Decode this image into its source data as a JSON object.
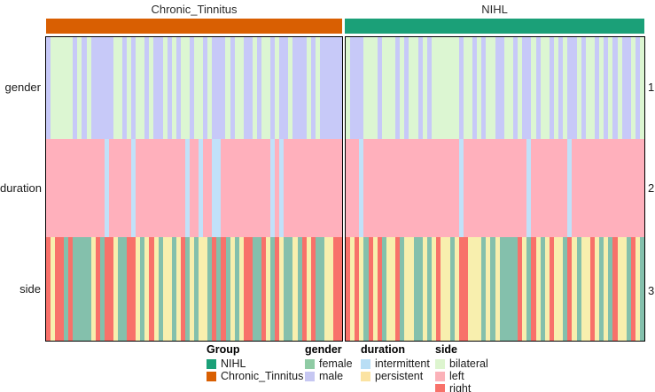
{
  "header": {
    "left_title": "Chronic_Tinnitus",
    "right_title": "NIHL"
  },
  "colors": {
    "group_bar": {
      "Chronic_Tinnitus": "#d95f02",
      "NIHL": "#1ba078"
    },
    "tracks": {
      "gender": {
        "female": "#dcf6d2",
        "male": "#c7c9f8"
      },
      "duration": {
        "intermittent": "#c1e1f9",
        "persistent": "#ffb0bc"
      },
      "side": {
        "bilateral": "#84c0ac",
        "left": "#f8efae",
        "right": "#f8716a"
      }
    }
  },
  "chart_data": {
    "type": "heatmap",
    "subtype": "categorical-annotation-heatmap",
    "description": "Columns are individual subjects split into two diagnosis groups; three categorical annotation rows (gender, duration, side) shown as colored stripes.",
    "column_groups": [
      {
        "name": "Chronic_Tinnitus",
        "n": 66
      },
      {
        "name": "NIHL",
        "n": 66
      }
    ],
    "rows": [
      {
        "key": "gender",
        "label": "gender",
        "number": "1"
      },
      {
        "key": "duration",
        "label": "duration",
        "number": "2"
      },
      {
        "key": "side",
        "label": "side",
        "number": "3"
      }
    ],
    "codes": {
      "gender": {
        "F": "female",
        "M": "male"
      },
      "duration": {
        "I": "intermittent",
        "P": "persistent"
      },
      "side": {
        "B": "bilateral",
        "L": "left",
        "R": "right"
      }
    },
    "panels": [
      {
        "group": "Chronic_Tinnitus",
        "tracks": {
          "gender": "M1 F5 M1 F1 M1 F1 M5 F2 M1 F1 M1 F2 M1 F1 M2 F1 M1 F1 M1 F2 M1 F2 M1 F1 M3 F1 M1 F2 M2 F1 M1 F2 M1 F1 M2 F1 M3 F1 M1 F1 M5",
          "duration": "P13 I1 P5 I1 P11 I1 P2 I1 P2 I2 P11 I1 P1 I1 P13",
          "side": "R1 L1 R2 B1 R1 B4 L1 R1 B1 R2 L1 B2 R2 L1 B1 L1 R1 L1 B1 L2 B1 L1 R1 B1 L1 B1 L2 B1 R1 B1 R1 B1 L1 B1 L1 R2 B2 R1 L1 B1 R1 L1 B2 L1 B1 R1 L1 R1 B2 L2 R2"
        }
      },
      {
        "group": "NIHL",
        "tracks": {
          "gender": "F1 M3 F3 M1 F3 M1 F1 M1 F2 M1 F1 M1 F6 M1 F2 M1 F1 M1 F2 M2 F2 M1 F1 M2 F1 M1 F2 M1 F1 M1 F1 M2 F1 M1 F2 M1 F1 M1 F1 M1 F1 M2 F1 M1 F1",
          "duration": "P3 I1 P21 I1 P14 I1 P8 I1 P16",
          "side": "R1 L1 R1 L1 B1 R1 L1 R1 B1 L2 R1 B1 L2 B2 L1 B1 L1 R1 L2 B1 L1 R2 L3 B1 L1 B1 L1 B4 R1 L1 B1 R1 L1 B1 L1 R1 L2 B1 R1 L1 B1 L2 R1 L1 B1 L1 B1 R1 L2 B1 R1 L1 B1"
        }
      }
    ]
  },
  "legend": {
    "groups": [
      {
        "title": "Group",
        "items": [
          {
            "label": "NIHL",
            "color": "#1ba078"
          },
          {
            "label": "Chronic_Tinnitus",
            "color": "#d95f02"
          }
        ]
      },
      {
        "title": "gender",
        "items": [
          {
            "label": "female",
            "color": "#8fcba4"
          },
          {
            "label": "male",
            "color": "#c6c7f2"
          }
        ]
      },
      {
        "title": "duration",
        "items": [
          {
            "label": "intermittent",
            "color": "#b9def5"
          },
          {
            "label": "persistent",
            "color": "#fbe3a2"
          }
        ]
      },
      {
        "title": "side",
        "items": [
          {
            "label": "bilateral",
            "color": "#ddf5cf"
          },
          {
            "label": "left",
            "color": "#fbb2b9"
          },
          {
            "label": "right",
            "color": "#f8726a"
          }
        ]
      }
    ]
  }
}
